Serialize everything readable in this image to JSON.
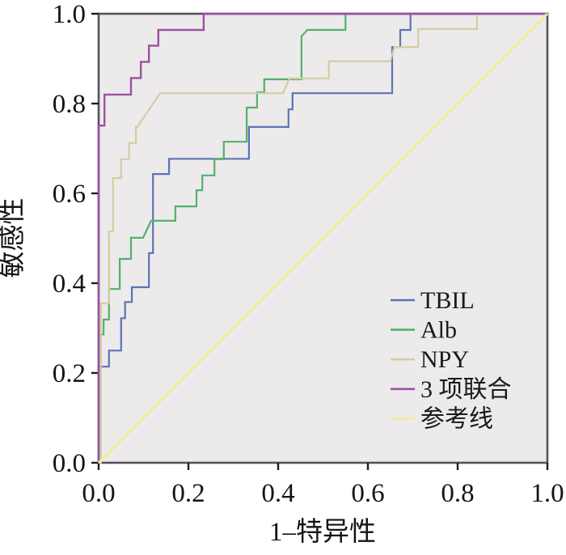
{
  "figure_title": "",
  "colors": {
    "plot_background": "#ECEAEB",
    "frame": "#56525B",
    "tick": "#1c1c1c",
    "text": "#141414",
    "tbil": "#5C73B4",
    "alb": "#54B169",
    "npy": "#D5CCA2",
    "combo": "#9C51A1",
    "reference": "#F0EC9B"
  },
  "chart_data": {
    "type": "line",
    "subtype": "roc-step-curves",
    "title": "",
    "xlabel": "1–特异性",
    "ylabel": "敏感性",
    "xlim": [
      0,
      1
    ],
    "ylim": [
      0,
      1
    ],
    "grid": false,
    "legend_position": "lower-right",
    "x_ticks": [
      "0.0",
      "0.2",
      "0.4",
      "0.6",
      "0.8",
      "1.0"
    ],
    "y_ticks": [
      "0.0",
      "0.2",
      "0.4",
      "0.6",
      "0.8",
      "1.0"
    ],
    "series": [
      {
        "name": "TBIL",
        "color": "#5C73B4",
        "stroke_width": 2.2,
        "points": [
          [
            0,
            0
          ],
          [
            0,
            0.214
          ],
          [
            0.023,
            0.214
          ],
          [
            0.023,
            0.25
          ],
          [
            0.05,
            0.25
          ],
          [
            0.05,
            0.322
          ],
          [
            0.059,
            0.322
          ],
          [
            0.059,
            0.358
          ],
          [
            0.074,
            0.358
          ],
          [
            0.074,
            0.391
          ],
          [
            0.112,
            0.391
          ],
          [
            0.112,
            0.467
          ],
          [
            0.121,
            0.467
          ],
          [
            0.121,
            0.643
          ],
          [
            0.157,
            0.643
          ],
          [
            0.157,
            0.677
          ],
          [
            0.335,
            0.677
          ],
          [
            0.335,
            0.748
          ],
          [
            0.423,
            0.748
          ],
          [
            0.423,
            0.787
          ],
          [
            0.432,
            0.787
          ],
          [
            0.432,
            0.823
          ],
          [
            0.654,
            0.823
          ],
          [
            0.654,
            0.926
          ],
          [
            0.672,
            0.926
          ],
          [
            0.672,
            0.964
          ],
          [
            0.695,
            0.964
          ],
          [
            0.695,
            1
          ],
          [
            1,
            1
          ]
        ]
      },
      {
        "name": "Alb",
        "color": "#54B169",
        "stroke_width": 2.2,
        "points": [
          [
            0,
            0
          ],
          [
            0,
            0.286
          ],
          [
            0.011,
            0.286
          ],
          [
            0.011,
            0.319
          ],
          [
            0.023,
            0.319
          ],
          [
            0.023,
            0.387
          ],
          [
            0.047,
            0.387
          ],
          [
            0.047,
            0.454
          ],
          [
            0.072,
            0.454
          ],
          [
            0.072,
            0.501
          ],
          [
            0.099,
            0.501
          ],
          [
            0.117,
            0.539
          ],
          [
            0.171,
            0.539
          ],
          [
            0.171,
            0.571
          ],
          [
            0.218,
            0.571
          ],
          [
            0.218,
            0.607
          ],
          [
            0.231,
            0.607
          ],
          [
            0.231,
            0.64
          ],
          [
            0.258,
            0.64
          ],
          [
            0.258,
            0.676
          ],
          [
            0.279,
            0.676
          ],
          [
            0.279,
            0.715
          ],
          [
            0.33,
            0.715
          ],
          [
            0.33,
            0.791
          ],
          [
            0.353,
            0.791
          ],
          [
            0.353,
            0.825
          ],
          [
            0.369,
            0.825
          ],
          [
            0.369,
            0.854
          ],
          [
            0.452,
            0.854
          ],
          [
            0.452,
            0.95
          ],
          [
            0.465,
            0.964
          ],
          [
            0.55,
            0.964
          ],
          [
            0.55,
            1
          ],
          [
            1,
            1
          ]
        ]
      },
      {
        "name": "NPY",
        "color": "#D5CCA2",
        "stroke_width": 2.2,
        "points": [
          [
            0,
            0
          ],
          [
            0.005,
            0
          ],
          [
            0.005,
            0.355
          ],
          [
            0.023,
            0.355
          ],
          [
            0.023,
            0.515
          ],
          [
            0.032,
            0.515
          ],
          [
            0.032,
            0.634
          ],
          [
            0.05,
            0.634
          ],
          [
            0.05,
            0.676
          ],
          [
            0.068,
            0.676
          ],
          [
            0.068,
            0.712
          ],
          [
            0.083,
            0.712
          ],
          [
            0.083,
            0.748
          ],
          [
            0.086,
            0.748
          ],
          [
            0.137,
            0.823
          ],
          [
            0.411,
            0.823
          ],
          [
            0.425,
            0.856
          ],
          [
            0.513,
            0.856
          ],
          [
            0.513,
            0.894
          ],
          [
            0.65,
            0.894
          ],
          [
            0.659,
            0.926
          ],
          [
            0.712,
            0.926
          ],
          [
            0.712,
            0.966
          ],
          [
            0.843,
            0.966
          ],
          [
            0.843,
            1
          ],
          [
            1,
            1
          ]
        ]
      },
      {
        "name": "3 项联合",
        "color": "#9C51A1",
        "stroke_width": 2.4,
        "points": [
          [
            0,
            0
          ],
          [
            0,
            0.751
          ],
          [
            0.013,
            0.751
          ],
          [
            0.013,
            0.82
          ],
          [
            0.072,
            0.82
          ],
          [
            0.072,
            0.857
          ],
          [
            0.094,
            0.857
          ],
          [
            0.094,
            0.893
          ],
          [
            0.112,
            0.893
          ],
          [
            0.112,
            0.929
          ],
          [
            0.133,
            0.929
          ],
          [
            0.133,
            0.964
          ],
          [
            0.234,
            0.964
          ],
          [
            0.234,
            1
          ],
          [
            1,
            1
          ]
        ]
      },
      {
        "name": "参考线",
        "color": "#F0EC9B",
        "stroke_width": 3.2,
        "points": [
          [
            0,
            0
          ],
          [
            1,
            1
          ]
        ]
      }
    ]
  }
}
